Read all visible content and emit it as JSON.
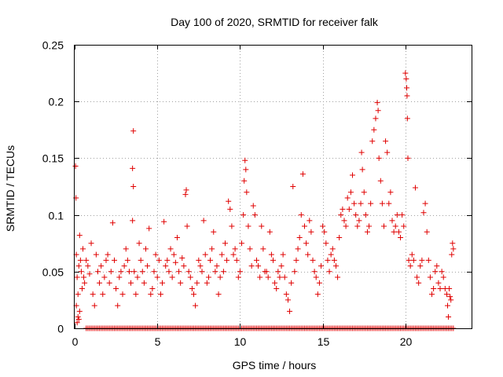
{
  "chart_data": {
    "type": "scatter",
    "title": "Day 100 of 2020, SRMTID for receiver falk",
    "xlabel": "GPS time / hours",
    "ylabel": "SRMTID / TECUs",
    "xlim": [
      0,
      24
    ],
    "ylim": [
      0,
      0.25
    ],
    "xticks": [
      0,
      5,
      10,
      15,
      20
    ],
    "xtick_labels": [
      "0",
      "5",
      "10",
      "15",
      "20"
    ],
    "yticks": [
      0,
      0.05,
      0.1,
      0.15,
      0.2,
      0.25
    ],
    "ytick_labels": [
      "0",
      "0.05",
      "0.1",
      "0.15",
      "0.2",
      "0.25"
    ],
    "grid": true,
    "marker": "plus",
    "color": "#e00000",
    "series": [
      {
        "name": "SRMTID",
        "points": [
          [
            0.05,
            0.143
          ],
          [
            0.08,
            0.115
          ],
          [
            0.1,
            0.065
          ],
          [
            0.1,
            0.02
          ],
          [
            0.15,
            0.005
          ],
          [
            0.15,
            0.045
          ],
          [
            0.2,
            0.01
          ],
          [
            0.2,
            0.03
          ],
          [
            0.25,
            0.008
          ],
          [
            0.25,
            0.055
          ],
          [
            0.3,
            0.082
          ],
          [
            0.3,
            0.015
          ],
          [
            0.35,
            0.06
          ],
          [
            0.4,
            0.05
          ],
          [
            0.45,
            0.035
          ],
          [
            0.5,
            0.07
          ],
          [
            0.55,
            0.045
          ],
          [
            0.6,
            0.04
          ],
          [
            0.7,
            0.06
          ],
          [
            0.8,
            0.055
          ],
          [
            0.9,
            0.048
          ],
          [
            1.0,
            0.075
          ],
          [
            1.1,
            0.03
          ],
          [
            1.2,
            0.02
          ],
          [
            1.3,
            0.065
          ],
          [
            1.4,
            0.05
          ],
          [
            1.5,
            0.04
          ],
          [
            1.6,
            0.055
          ],
          [
            1.7,
            0.03
          ],
          [
            1.8,
            0.045
          ],
          [
            1.9,
            0.06
          ],
          [
            2.0,
            0.065
          ],
          [
            2.1,
            0.04
          ],
          [
            2.2,
            0.05
          ],
          [
            2.3,
            0.093
          ],
          [
            2.4,
            0.06
          ],
          [
            2.5,
            0.035
          ],
          [
            2.6,
            0.02
          ],
          [
            2.7,
            0.045
          ],
          [
            2.8,
            0.05
          ],
          [
            2.9,
            0.03
          ],
          [
            3.0,
            0.055
          ],
          [
            3.1,
            0.07
          ],
          [
            3.2,
            0.06
          ],
          [
            3.3,
            0.05
          ],
          [
            3.4,
            0.04
          ],
          [
            3.5,
            0.095
          ],
          [
            3.55,
            0.174
          ],
          [
            3.5,
            0.141
          ],
          [
            3.55,
            0.125
          ],
          [
            3.6,
            0.05
          ],
          [
            3.7,
            0.03
          ],
          [
            3.8,
            0.045
          ],
          [
            3.9,
            0.075
          ],
          [
            4.0,
            0.06
          ],
          [
            4.1,
            0.05
          ],
          [
            4.2,
            0.04
          ],
          [
            4.3,
            0.07
          ],
          [
            4.4,
            0.055
          ],
          [
            4.5,
            0.088
          ],
          [
            4.6,
            0.03
          ],
          [
            4.7,
            0.035
          ],
          [
            4.8,
            0.05
          ],
          [
            4.9,
            0.065
          ],
          [
            5.0,
            0.045
          ],
          [
            5.1,
            0.06
          ],
          [
            5.2,
            0.03
          ],
          [
            5.3,
            0.04
          ],
          [
            5.4,
            0.094
          ],
          [
            5.5,
            0.055
          ],
          [
            5.6,
            0.06
          ],
          [
            5.7,
            0.05
          ],
          [
            5.8,
            0.07
          ],
          [
            5.9,
            0.045
          ],
          [
            6.0,
            0.065
          ],
          [
            6.1,
            0.058
          ],
          [
            6.2,
            0.08
          ],
          [
            6.3,
            0.05
          ],
          [
            6.4,
            0.04
          ],
          [
            6.5,
            0.062
          ],
          [
            6.6,
            0.055
          ],
          [
            6.7,
            0.118
          ],
          [
            6.75,
            0.122
          ],
          [
            6.8,
            0.09
          ],
          [
            6.9,
            0.05
          ],
          [
            7.0,
            0.045
          ],
          [
            7.1,
            0.035
          ],
          [
            7.2,
            0.03
          ],
          [
            7.3,
            0.02
          ],
          [
            7.4,
            0.04
          ],
          [
            7.5,
            0.06
          ],
          [
            7.6,
            0.055
          ],
          [
            7.7,
            0.05
          ],
          [
            7.8,
            0.095
          ],
          [
            7.9,
            0.065
          ],
          [
            8.0,
            0.04
          ],
          [
            8.1,
            0.045
          ],
          [
            8.2,
            0.06
          ],
          [
            8.3,
            0.07
          ],
          [
            8.4,
            0.085
          ],
          [
            8.5,
            0.05
          ],
          [
            8.6,
            0.055
          ],
          [
            8.7,
            0.03
          ],
          [
            8.8,
            0.045
          ],
          [
            8.9,
            0.065
          ],
          [
            9.0,
            0.05
          ],
          [
            9.1,
            0.075
          ],
          [
            9.2,
            0.06
          ],
          [
            9.3,
            0.112
          ],
          [
            9.4,
            0.105
          ],
          [
            9.5,
            0.09
          ],
          [
            9.6,
            0.065
          ],
          [
            9.7,
            0.07
          ],
          [
            9.8,
            0.06
          ],
          [
            9.9,
            0.045
          ],
          [
            10.0,
            0.05
          ],
          [
            10.1,
            0.075
          ],
          [
            10.2,
            0.1
          ],
          [
            10.25,
            0.13
          ],
          [
            10.3,
            0.148
          ],
          [
            10.35,
            0.14
          ],
          [
            10.4,
            0.12
          ],
          [
            10.5,
            0.09
          ],
          [
            10.6,
            0.07
          ],
          [
            10.7,
            0.055
          ],
          [
            10.8,
            0.108
          ],
          [
            10.9,
            0.1
          ],
          [
            11.0,
            0.06
          ],
          [
            11.1,
            0.055
          ],
          [
            11.2,
            0.045
          ],
          [
            11.3,
            0.09
          ],
          [
            11.4,
            0.07
          ],
          [
            11.5,
            0.05
          ],
          [
            11.6,
            0.05
          ],
          [
            11.7,
            0.045
          ],
          [
            11.8,
            0.085
          ],
          [
            11.9,
            0.065
          ],
          [
            12.0,
            0.06
          ],
          [
            12.1,
            0.04
          ],
          [
            12.2,
            0.035
          ],
          [
            12.3,
            0.05
          ],
          [
            12.4,
            0.045
          ],
          [
            12.5,
            0.055
          ],
          [
            12.6,
            0.065
          ],
          [
            12.7,
            0.045
          ],
          [
            12.8,
            0.03
          ],
          [
            12.9,
            0.025
          ],
          [
            13.0,
            0.015
          ],
          [
            13.1,
            0.04
          ],
          [
            13.2,
            0.125
          ],
          [
            13.3,
            0.05
          ],
          [
            13.4,
            0.06
          ],
          [
            13.5,
            0.07
          ],
          [
            13.6,
            0.08
          ],
          [
            13.7,
            0.1
          ],
          [
            13.8,
            0.136
          ],
          [
            13.9,
            0.09
          ],
          [
            14.0,
            0.075
          ],
          [
            14.1,
            0.065
          ],
          [
            14.2,
            0.095
          ],
          [
            14.3,
            0.085
          ],
          [
            14.4,
            0.06
          ],
          [
            14.5,
            0.05
          ],
          [
            14.6,
            0.045
          ],
          [
            14.7,
            0.03
          ],
          [
            14.8,
            0.04
          ],
          [
            14.9,
            0.055
          ],
          [
            15.0,
            0.09
          ],
          [
            15.1,
            0.085
          ],
          [
            15.2,
            0.075
          ],
          [
            15.3,
            0.06
          ],
          [
            15.4,
            0.05
          ],
          [
            15.5,
            0.065
          ],
          [
            15.6,
            0.07
          ],
          [
            15.7,
            0.06
          ],
          [
            15.8,
            0.055
          ],
          [
            15.9,
            0.045
          ],
          [
            16.0,
            0.08
          ],
          [
            16.1,
            0.1
          ],
          [
            16.2,
            0.105
          ],
          [
            16.3,
            0.095
          ],
          [
            16.4,
            0.09
          ],
          [
            16.5,
            0.115
          ],
          [
            16.6,
            0.105
          ],
          [
            16.7,
            0.12
          ],
          [
            16.8,
            0.135
          ],
          [
            16.9,
            0.11
          ],
          [
            17.0,
            0.1
          ],
          [
            17.1,
            0.09
          ],
          [
            17.2,
            0.095
          ],
          [
            17.3,
            0.11
          ],
          [
            17.35,
            0.155
          ],
          [
            17.4,
            0.14
          ],
          [
            17.5,
            0.12
          ],
          [
            17.6,
            0.1
          ],
          [
            17.7,
            0.085
          ],
          [
            17.8,
            0.09
          ],
          [
            17.9,
            0.11
          ],
          [
            18.0,
            0.165
          ],
          [
            18.1,
            0.175
          ],
          [
            18.2,
            0.185
          ],
          [
            18.3,
            0.199
          ],
          [
            18.35,
            0.192
          ],
          [
            18.4,
            0.15
          ],
          [
            18.5,
            0.13
          ],
          [
            18.6,
            0.11
          ],
          [
            18.7,
            0.09
          ],
          [
            18.8,
            0.165
          ],
          [
            18.9,
            0.155
          ],
          [
            19.0,
            0.11
          ],
          [
            19.1,
            0.12
          ],
          [
            19.2,
            0.095
          ],
          [
            19.3,
            0.085
          ],
          [
            19.4,
            0.09
          ],
          [
            19.5,
            0.1
          ],
          [
            19.6,
            0.085
          ],
          [
            19.7,
            0.08
          ],
          [
            19.8,
            0.1
          ],
          [
            19.9,
            0.09
          ],
          [
            20.0,
            0.225
          ],
          [
            20.05,
            0.22
          ],
          [
            20.08,
            0.212
          ],
          [
            20.1,
            0.205
          ],
          [
            20.12,
            0.185
          ],
          [
            20.15,
            0.15
          ],
          [
            20.2,
            0.06
          ],
          [
            20.3,
            0.055
          ],
          [
            20.4,
            0.065
          ],
          [
            20.5,
            0.06
          ],
          [
            20.6,
            0.124
          ],
          [
            20.7,
            0.045
          ],
          [
            20.8,
            0.04
          ],
          [
            20.9,
            0.055
          ],
          [
            21.0,
            0.06
          ],
          [
            21.1,
            0.102
          ],
          [
            21.2,
            0.11
          ],
          [
            21.3,
            0.085
          ],
          [
            21.4,
            0.06
          ],
          [
            21.5,
            0.045
          ],
          [
            21.6,
            0.03
          ],
          [
            21.7,
            0.035
          ],
          [
            21.8,
            0.05
          ],
          [
            21.9,
            0.055
          ],
          [
            22.0,
            0.04
          ],
          [
            22.1,
            0.035
          ],
          [
            22.2,
            0.05
          ],
          [
            22.3,
            0.045
          ],
          [
            22.4,
            0.035
          ],
          [
            22.5,
            0.03
          ],
          [
            22.55,
            0.02
          ],
          [
            22.6,
            0.01
          ],
          [
            22.65,
            0.035
          ],
          [
            22.7,
            0.028
          ],
          [
            22.75,
            0.025
          ],
          [
            22.8,
            0.065
          ],
          [
            22.85,
            0.075
          ],
          [
            22.9,
            0.07
          ]
        ],
        "zero_baseline": {
          "from": 0.7,
          "to": 22.9,
          "step": 0.1,
          "value": 0
        }
      }
    ]
  }
}
